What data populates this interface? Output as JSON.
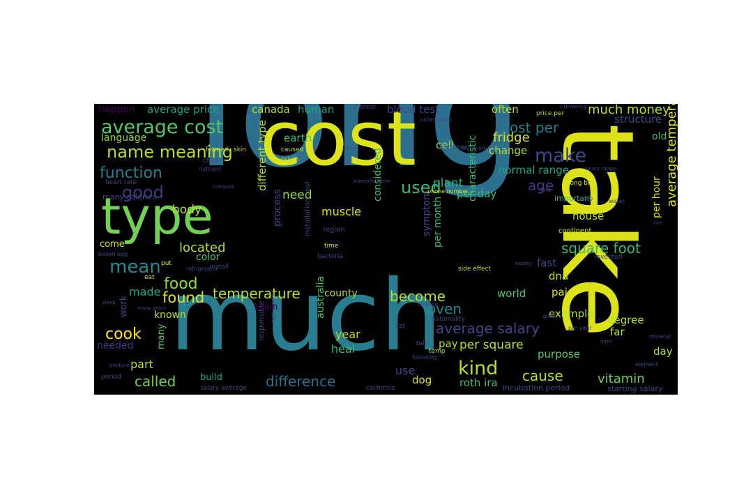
{
  "word_cloud": {
    "background": "#000000",
    "palette": [
      "#fde725",
      "#dce319",
      "#b8de29",
      "#95d840",
      "#73d055",
      "#55c667",
      "#3cbb75",
      "#29af7f",
      "#20a386",
      "#1f968b",
      "#238a8d",
      "#287d8e",
      "#2d708e",
      "#33638d",
      "#39568c",
      "#404788",
      "#453781",
      "#482677",
      "#481567",
      "#440154"
    ],
    "words": [
      {
        "text": "long",
        "color": "#2d708e"
      },
      {
        "text": "much",
        "color": "#287d8e"
      },
      {
        "text": "cost",
        "color": "#dce319"
      },
      {
        "text": "take",
        "color": "#dce319"
      },
      {
        "text": "type",
        "color": "#73d055"
      },
      {
        "text": "average cost",
        "color": "#55c667"
      },
      {
        "text": "name meaning",
        "color": "#b8de29"
      },
      {
        "text": "make",
        "color": "#404788"
      },
      {
        "text": "function",
        "color": "#287d8e"
      },
      {
        "text": "mean",
        "color": "#238a8d"
      },
      {
        "text": "good",
        "color": "#453781"
      },
      {
        "text": "body",
        "color": "#b8de29"
      },
      {
        "text": "age",
        "color": "#453781"
      },
      {
        "text": "used",
        "color": "#3cbb75"
      },
      {
        "text": "need",
        "color": "#95d840"
      },
      {
        "text": "muscle",
        "color": "#dce319"
      },
      {
        "text": "cost per",
        "color": "#287d8e"
      },
      {
        "text": "much money",
        "color": "#b8de29"
      },
      {
        "text": "fridge",
        "color": "#dce319"
      },
      {
        "text": "kind",
        "color": "#b8de29"
      },
      {
        "text": "food",
        "color": "#95d840"
      },
      {
        "text": "found",
        "color": "#dce319"
      },
      {
        "text": "temperature",
        "color": "#b8de29"
      },
      {
        "text": "become",
        "color": "#b8de29"
      },
      {
        "text": "oven",
        "color": "#238a8d"
      },
      {
        "text": "average salary",
        "color": "#404788"
      },
      {
        "text": "cook",
        "color": "#fde725"
      },
      {
        "text": "called",
        "color": "#73d055"
      },
      {
        "text": "difference",
        "color": "#2d708e"
      },
      {
        "text": "cause",
        "color": "#b8de29"
      },
      {
        "text": "vitamin",
        "color": "#73d055"
      },
      {
        "text": "square foot",
        "color": "#3cbb75"
      },
      {
        "text": "average temperature",
        "color": "#dce319"
      },
      {
        "text": "located",
        "color": "#b8de29"
      },
      {
        "text": "made",
        "color": "#20a386"
      },
      {
        "text": "part",
        "color": "#b8de29"
      },
      {
        "text": "per square",
        "color": "#b8de29"
      },
      {
        "text": "year",
        "color": "#b8de29"
      },
      {
        "text": "heal",
        "color": "#3cbb75"
      },
      {
        "text": "use",
        "color": "#404788"
      },
      {
        "text": "dog",
        "color": "#dce319"
      },
      {
        "text": "roth ira",
        "color": "#3cbb75"
      },
      {
        "text": "different type",
        "color": "#b8de29"
      },
      {
        "text": "plant",
        "color": "#29af7f"
      },
      {
        "text": "per day",
        "color": "#3cbb75"
      },
      {
        "text": "normal range",
        "color": "#20a386"
      },
      {
        "text": "change",
        "color": "#b8de29"
      },
      {
        "text": "cell",
        "color": "#95d840"
      },
      {
        "text": "earth",
        "color": "#3cbb75"
      },
      {
        "text": "language",
        "color": "#95d840"
      },
      {
        "text": "average price",
        "color": "#20a386"
      },
      {
        "text": "canada",
        "color": "#b8de29"
      },
      {
        "text": "human",
        "color": "#20a386"
      },
      {
        "text": "happen",
        "color": "#440154"
      },
      {
        "text": "blood test",
        "color": "#404788"
      },
      {
        "text": "often",
        "color": "#b8de29"
      },
      {
        "text": "structure",
        "color": "#404788"
      },
      {
        "text": "old",
        "color": "#3cbb75"
      },
      {
        "text": "per hour",
        "color": "#dce319"
      },
      {
        "text": "fast",
        "color": "#404788"
      },
      {
        "text": "dna",
        "color": "#b8de29"
      },
      {
        "text": "paid",
        "color": "#dce319"
      },
      {
        "text": "world",
        "color": "#55c667"
      },
      {
        "text": "example",
        "color": "#b8de29"
      },
      {
        "text": "degree",
        "color": "#b8de29"
      },
      {
        "text": "far",
        "color": "#b8de29"
      },
      {
        "text": "pay",
        "color": "#b8de29"
      },
      {
        "text": "purpose",
        "color": "#55c667"
      },
      {
        "text": "day",
        "color": "#b8de29"
      },
      {
        "text": "house",
        "color": "#b8de29"
      },
      {
        "text": "considered",
        "color": "#3cbb75"
      },
      {
        "text": "symptom",
        "color": "#404788"
      },
      {
        "text": "per month",
        "color": "#3cbb75"
      },
      {
        "text": "characteristic",
        "color": "#3cbb75"
      },
      {
        "text": "county",
        "color": "#b8de29"
      },
      {
        "text": "australia",
        "color": "#55c667"
      },
      {
        "text": "process",
        "color": "#404788"
      },
      {
        "text": "color",
        "color": "#55c667"
      },
      {
        "text": "known",
        "color": "#b8de29"
      },
      {
        "text": "needed",
        "color": "#453781"
      },
      {
        "text": "work",
        "color": "#404788"
      },
      {
        "text": "many",
        "color": "#55c667"
      },
      {
        "text": "build",
        "color": "#20a386"
      },
      {
        "text": "come",
        "color": "#dce319"
      },
      {
        "text": "important",
        "color": "#3cbb75"
      },
      {
        "text": "long bill",
        "color": "#dce319"
      },
      {
        "text": "incubation period",
        "color": "#404788"
      },
      {
        "text": "starting salary",
        "color": "#404788"
      },
      {
        "text": "heart rate",
        "color": "#404788"
      },
      {
        "text": "many calories",
        "color": "#404788"
      },
      {
        "text": "region",
        "color": "#404788"
      },
      {
        "text": "time",
        "color": "#dce319"
      },
      {
        "text": "bacteria",
        "color": "#404788"
      },
      {
        "text": "installation cost",
        "color": "#404788"
      },
      {
        "text": "nationality",
        "color": "#404788"
      },
      {
        "text": "net worth",
        "color": "#404788"
      },
      {
        "text": "responsible",
        "color": "#404788"
      },
      {
        "text": "continent",
        "color": "#dce319"
      },
      {
        "text": "invented",
        "color": "#404788"
      },
      {
        "text": "formed",
        "color": "#b8de29"
      },
      {
        "text": "skin",
        "color": "#b8de29"
      },
      {
        "text": "caused",
        "color": "#b8de29"
      },
      {
        "text": "origin",
        "color": "#b8de29"
      },
      {
        "text": "protein",
        "color": "#404788"
      },
      {
        "text": "currency",
        "color": "#404788"
      },
      {
        "text": "price per",
        "color": "#b8de29"
      },
      {
        "text": "child",
        "color": "#404788"
      },
      {
        "text": "nutrient",
        "color": "#404788"
      },
      {
        "text": "install",
        "color": "#404788"
      },
      {
        "text": "side effect",
        "color": "#b8de29"
      },
      {
        "text": "eat",
        "color": "#dce319"
      },
      {
        "text": "put",
        "color": "#dce319"
      },
      {
        "text": "temp",
        "color": "#b8de29"
      },
      {
        "text": "cat",
        "color": "#404788"
      },
      {
        "text": "tall",
        "color": "#404788"
      },
      {
        "text": "california",
        "color": "#404788"
      },
      {
        "text": "salary average",
        "color": "#404788"
      },
      {
        "text": "period",
        "color": "#404788"
      },
      {
        "text": "refrigerator",
        "color": "#404788"
      },
      {
        "text": "boiled egg",
        "color": "#404788"
      },
      {
        "text": "find",
        "color": "#404788"
      },
      {
        "text": "group",
        "color": "#404788"
      },
      {
        "text": "india",
        "color": "#404788"
      },
      {
        "text": "water",
        "color": "#404788"
      },
      {
        "text": "phone number",
        "color": "#dce319"
      },
      {
        "text": "company",
        "color": "#404788"
      },
      {
        "text": "organism",
        "color": "#404788"
      },
      {
        "text": "united states",
        "color": "#404788"
      },
      {
        "text": "scientific name",
        "color": "#404788"
      },
      {
        "text": "per year",
        "color": "#404788"
      },
      {
        "text": "mineral",
        "color": "#404788"
      },
      {
        "text": "following",
        "color": "#404788"
      },
      {
        "text": "element",
        "color": "#404788"
      },
      {
        "text": "many years",
        "color": "#404788"
      },
      {
        "text": "produced",
        "color": "#404788"
      },
      {
        "text": "grow",
        "color": "#404788"
      },
      {
        "text": "salary range",
        "color": "#404788"
      },
      {
        "text": "form",
        "color": "#404788"
      },
      {
        "text": "brain",
        "color": "#440154"
      },
      {
        "text": "change",
        "color": "#404788"
      },
      {
        "text": "compute",
        "color": "#404788"
      },
      {
        "text": "live",
        "color": "#404788"
      },
      {
        "text": "nearby",
        "color": "#404788"
      },
      {
        "text": "sleep",
        "color": "#404788"
      }
    ]
  }
}
